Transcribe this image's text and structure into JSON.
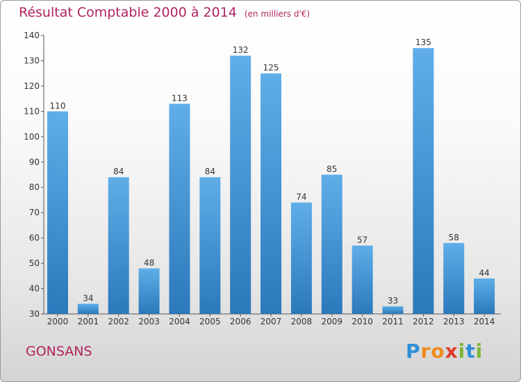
{
  "title": "Résultat Comptable 2000 à 2014",
  "subtitle": "(en milliers d'€)",
  "commune": "GONSANS",
  "logo": {
    "letters": [
      "P",
      "r",
      "o",
      "x",
      "i",
      "t",
      "i"
    ],
    "colors": [
      "#2f8fd8",
      "#f08b1c",
      "#f08b1c",
      "#e23a2a",
      "#7cb83a",
      "#2f8fd8",
      "#7cb83a"
    ]
  },
  "colors": {
    "bar_top": "#5faee8",
    "bar_bottom": "#2b78bb",
    "title": "#b0245e"
  },
  "chart_data": {
    "type": "bar",
    "title": "Résultat Comptable 2000 à 2014",
    "ylabel": "en milliers d'€",
    "xlabel": "",
    "categories": [
      "2000",
      "2001",
      "2002",
      "2003",
      "2004",
      "2005",
      "2006",
      "2007",
      "2008",
      "2009",
      "2010",
      "2011",
      "2012",
      "2013",
      "2014"
    ],
    "values": [
      110,
      34,
      84,
      48,
      113,
      84,
      132,
      125,
      74,
      85,
      57,
      33,
      135,
      58,
      44
    ],
    "ylim": [
      30,
      140
    ],
    "yticks": [
      30,
      40,
      50,
      60,
      70,
      80,
      90,
      100,
      110,
      120,
      130,
      140
    ],
    "grid": false
  }
}
